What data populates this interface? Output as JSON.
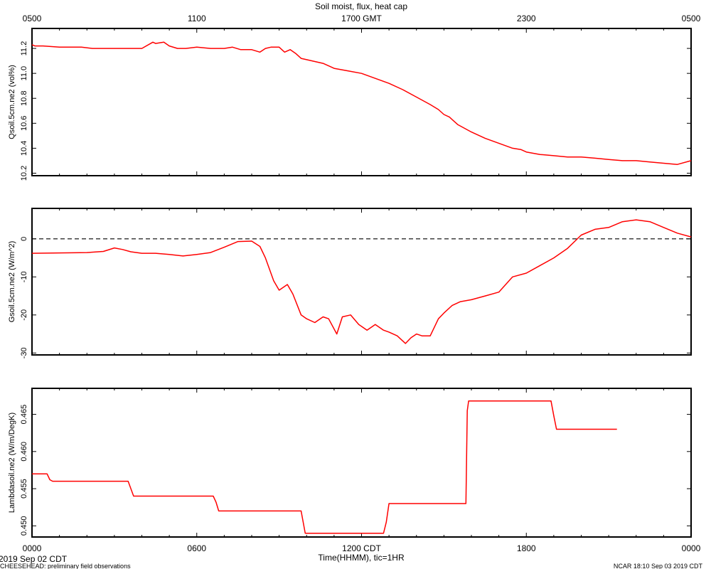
{
  "title": "Soil moist, flux, heat cap",
  "top_axis": {
    "tick_labels": [
      "0500",
      "1100",
      "1700 GMT",
      "2300",
      "0500"
    ]
  },
  "bottom_axis": {
    "tick_labels": [
      "0000",
      "0600",
      "1200 CDT",
      "1800",
      "0000"
    ],
    "label": "Time(HHMM), tic=1HR"
  },
  "footer": {
    "left_date": "2019 Sep 02 CDT",
    "left_note": "CHEESEHEAD: preliminary field observations",
    "right_note": "NCAR 18:10 Sep 03 2019 CDT"
  },
  "colors": {
    "series": "#ff0000",
    "axes": "#000000",
    "zero_line": "#000000"
  },
  "chart_data": [
    {
      "type": "line",
      "ylabel": "Qsoil.5cm.ne2 (vol%)",
      "ylim": [
        10.18,
        11.36
      ],
      "yticks": [
        10.2,
        10.4,
        10.6,
        10.8,
        11.0,
        11.2
      ],
      "ytick_labels": [
        "10.2",
        "10.4",
        "10.6",
        "10.8",
        "11.0",
        "11.2"
      ],
      "xlim": [
        0,
        24
      ],
      "x_units": "hours since 0000 CDT",
      "series": [
        {
          "x": [
            0,
            0.1,
            0.4,
            1.0,
            1.8,
            2.2,
            3.0,
            4.0,
            4.4,
            4.5,
            4.8,
            5.0,
            5.3,
            5.6,
            6.0,
            6.5,
            7.0,
            7.3,
            7.6,
            8.0,
            8.3,
            8.5,
            8.7,
            9.0,
            9.2,
            9.4,
            9.6,
            9.8,
            10.0,
            10.2,
            10.4,
            10.6,
            10.8,
            11.0,
            11.5,
            12.0,
            12.5,
            13.0,
            13.5,
            14.0,
            14.5,
            14.8,
            15.0,
            15.2,
            15.5,
            16.0,
            16.5,
            17.0,
            17.5,
            17.8,
            18.0,
            18.5,
            19.0,
            19.5,
            20.0,
            20.5,
            21.0,
            21.5,
            22.0,
            22.5,
            23.0,
            23.5,
            24.0
          ],
          "y": [
            11.23,
            11.22,
            11.22,
            11.21,
            11.21,
            11.2,
            11.2,
            11.2,
            11.25,
            11.24,
            11.25,
            11.22,
            11.2,
            11.2,
            11.21,
            11.2,
            11.2,
            11.21,
            11.19,
            11.19,
            11.17,
            11.2,
            11.21,
            11.21,
            11.17,
            11.19,
            11.16,
            11.12,
            11.11,
            11.1,
            11.09,
            11.08,
            11.06,
            11.04,
            11.02,
            11.0,
            10.96,
            10.92,
            10.87,
            10.81,
            10.75,
            10.71,
            10.67,
            10.65,
            10.59,
            10.53,
            10.48,
            10.44,
            10.4,
            10.39,
            10.37,
            10.35,
            10.34,
            10.33,
            10.33,
            10.32,
            10.31,
            10.3,
            10.3,
            10.29,
            10.28,
            10.27,
            10.3
          ]
        }
      ]
    },
    {
      "type": "line",
      "ylabel": "Gsoil.5cm.ne2 (W/m^2)",
      "ylim": [
        -30.5,
        8
      ],
      "yticks": [
        -30,
        -20,
        -10,
        0
      ],
      "ytick_labels": [
        "-30",
        "-20",
        "-10",
        "0"
      ],
      "zero_line": 0,
      "xlim": [
        0,
        24
      ],
      "x_units": "hours since 0000 CDT",
      "series": [
        {
          "x": [
            0,
            1.0,
            2.0,
            2.6,
            3.0,
            3.3,
            3.6,
            4.0,
            4.5,
            5.0,
            5.5,
            6.0,
            6.5,
            7.0,
            7.5,
            8.0,
            8.3,
            8.5,
            8.8,
            9.0,
            9.3,
            9.5,
            9.8,
            10.0,
            10.3,
            10.6,
            10.8,
            11.1,
            11.3,
            11.6,
            11.9,
            12.2,
            12.5,
            12.8,
            13.0,
            13.3,
            13.6,
            13.8,
            14.0,
            14.2,
            14.5,
            14.8,
            15.0,
            15.3,
            15.6,
            16.0,
            16.5,
            17.0,
            17.5,
            18.0,
            18.5,
            19.0,
            19.5,
            20.0,
            20.5,
            21.0,
            21.5,
            22.0,
            22.5,
            23.0,
            23.5,
            24.0
          ],
          "y": [
            -3.8,
            -3.7,
            -3.6,
            -3.3,
            -2.4,
            -2.8,
            -3.4,
            -3.8,
            -3.8,
            -4.1,
            -4.5,
            -4.1,
            -3.6,
            -2.2,
            -0.7,
            -0.6,
            -2.0,
            -5.0,
            -11.0,
            -13.5,
            -12.0,
            -14.5,
            -20.0,
            -21.0,
            -22.0,
            -20.5,
            -21.0,
            -25.0,
            -20.5,
            -20.0,
            -22.5,
            -24.0,
            -22.5,
            -24.0,
            -24.5,
            -25.5,
            -27.5,
            -26.0,
            -25.0,
            -25.5,
            -25.5,
            -21.0,
            -19.5,
            -17.5,
            -16.5,
            -16.0,
            -15.0,
            -14.0,
            -10.0,
            -9.0,
            -7.0,
            -5.0,
            -2.5,
            1.0,
            2.5,
            3.0,
            4.5,
            5.0,
            4.5,
            3.0,
            1.5,
            0.5
          ]
        }
      ]
    },
    {
      "type": "line",
      "ylabel": "Lambdasoil.ne2 (W/m/DegK)",
      "ylim": [
        0.4485,
        0.4685
      ],
      "yticks": [
        0.45,
        0.455,
        0.46,
        0.465
      ],
      "ytick_labels": [
        "0.450",
        "0.455",
        "0.460",
        "0.465"
      ],
      "xlim": [
        0,
        24
      ],
      "x_units": "hours since 0000 CDT",
      "series": [
        {
          "x": [
            0,
            0.55,
            0.65,
            0.75,
            3.5,
            3.7,
            6.6,
            6.7,
            6.8,
            9.8,
            9.95,
            12.8,
            12.9,
            13.0,
            15.8,
            15.85,
            15.9,
            18.9,
            19.0,
            19.1,
            21.3
          ],
          "y": [
            0.457,
            0.457,
            0.4562,
            0.456,
            0.456,
            0.454,
            0.454,
            0.4532,
            0.452,
            0.452,
            0.449,
            0.449,
            0.4505,
            0.453,
            0.453,
            0.4655,
            0.4668,
            0.4668,
            0.4648,
            0.463,
            0.463
          ]
        }
      ]
    }
  ]
}
